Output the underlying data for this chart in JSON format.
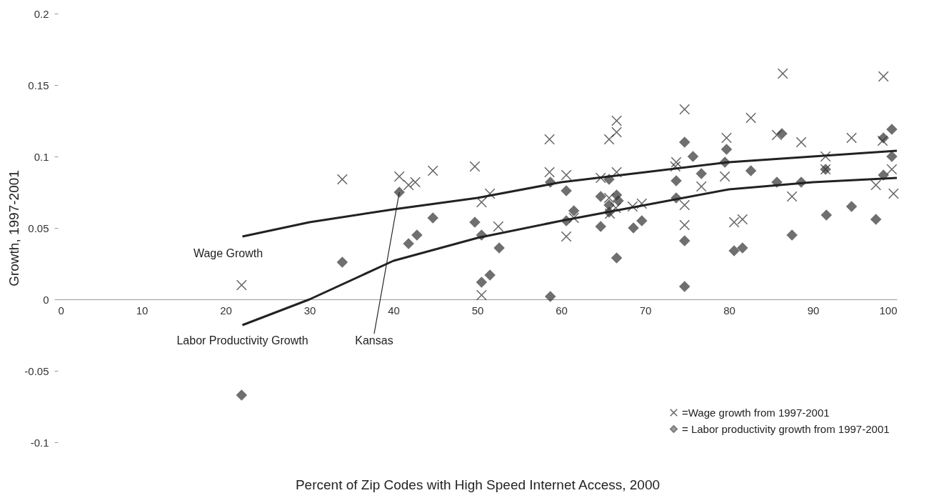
{
  "chart_data": {
    "type": "scatter",
    "xlabel": "Percent of Zip Codes with High Speed Internet Access, 2000",
    "ylabel": "Growth, 1997-2001",
    "xlim": [
      0,
      100
    ],
    "xticks": [
      0,
      10,
      20,
      30,
      40,
      50,
      60,
      70,
      80,
      90,
      100
    ],
    "ylim": [
      -0.1,
      0.2
    ],
    "yticks": [
      -0.1,
      -0.05,
      0,
      0.05,
      0.1,
      0.15,
      0.2
    ],
    "grid": false,
    "legend": "bottom right",
    "annotations": [
      {
        "text": "Kansas",
        "x": 40.7,
        "y": 0.075
      }
    ],
    "series": [
      {
        "name": "=Wage growth from 1997-2001",
        "color": "#222222",
        "marker": "cross",
        "x": [
          21.9,
          33.9,
          40.7,
          41.8,
          42.6,
          44.7,
          49.7,
          50.5,
          51.5,
          50.5,
          52.5,
          58.6,
          58.6,
          60.6,
          60.6,
          61.5,
          65.7,
          66.6,
          66.6,
          64.7,
          66.6,
          65.7,
          66.5,
          65.8,
          68.5,
          69.6,
          74.7,
          73.7,
          73.6,
          74.7,
          74.7,
          76.7,
          86.4,
          98.4,
          82.6,
          79.7,
          85.7,
          88.6,
          94.6,
          98.3,
          91.5,
          91.5,
          99.4,
          79.5,
          87.5,
          97.5,
          99.6,
          80.6,
          81.6
        ],
        "values": [
          0.01,
          0.084,
          0.086,
          0.08,
          0.082,
          0.09,
          0.093,
          0.068,
          0.074,
          0.003,
          0.051,
          0.112,
          0.089,
          0.087,
          0.044,
          0.057,
          0.112,
          0.125,
          0.117,
          0.085,
          0.089,
          0.071,
          0.064,
          0.06,
          0.065,
          0.067,
          0.133,
          0.096,
          0.093,
          0.066,
          0.052,
          0.079,
          0.158,
          0.156,
          0.127,
          0.113,
          0.115,
          0.11,
          0.113,
          0.111,
          0.1,
          0.091,
          0.091,
          0.086,
          0.072,
          0.08,
          0.074,
          0.054,
          0.056
        ]
      },
      {
        "name": "= Labor productivity growth from 1997-2001",
        "color": "#333333",
        "marker": "diamond",
        "x": [
          21.9,
          40.7,
          44.7,
          42.8,
          41.8,
          33.9,
          49.7,
          50.5,
          52.6,
          51.5,
          50.5,
          58.7,
          58.7,
          60.6,
          61.5,
          60.6,
          64.7,
          65.7,
          64.7,
          65.7,
          65.7,
          66.6,
          66.8,
          66.6,
          68.6,
          69.6,
          74.7,
          75.7,
          73.7,
          73.7,
          74.7,
          74.7,
          86.3,
          99.4,
          98.4,
          79.7,
          79.5,
          76.7,
          82.6,
          85.7,
          88.6,
          91.5,
          99.4,
          98.4,
          91.6,
          94.6,
          97.5,
          87.5,
          80.6,
          81.6
        ],
        "values": [
          -0.067,
          0.075,
          0.057,
          0.045,
          0.039,
          0.026,
          0.054,
          0.045,
          0.036,
          0.017,
          0.012,
          0.082,
          0.002,
          0.076,
          0.062,
          0.055,
          0.072,
          0.084,
          0.051,
          0.066,
          0.061,
          0.073,
          0.069,
          0.029,
          0.05,
          0.055,
          0.11,
          0.1,
          0.083,
          0.071,
          0.041,
          0.009,
          0.116,
          0.119,
          0.113,
          0.105,
          0.096,
          0.088,
          0.09,
          0.082,
          0.082,
          0.091,
          0.1,
          0.087,
          0.059,
          0.065,
          0.056,
          0.045,
          0.034,
          0.036
        ]
      },
      {
        "name": "Wage Growth",
        "type": "line",
        "color": "#222222",
        "marker": "none",
        "x": [
          22,
          30,
          40,
          50,
          60,
          70,
          80,
          90,
          100
        ],
        "values": [
          0.044,
          0.054,
          0.063,
          0.071,
          0.082,
          0.089,
          0.096,
          0.1,
          0.104
        ]
      },
      {
        "name": "Labor Productivity Growth",
        "type": "line",
        "color": "#222222",
        "marker": "none",
        "x": [
          22,
          30,
          40,
          50,
          60,
          70,
          80,
          90,
          100
        ],
        "values": [
          -0.018,
          0.0,
          0.027,
          0.043,
          0.055,
          0.066,
          0.077,
          0.082,
          0.085
        ]
      }
    ]
  }
}
